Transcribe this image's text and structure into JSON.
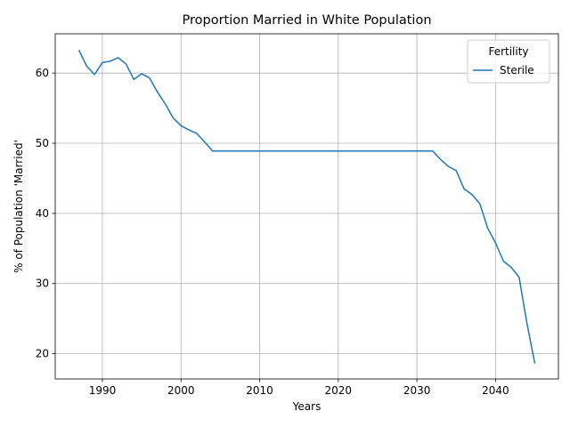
{
  "chart_data": {
    "type": "line",
    "title": "Proportion Married in White Population",
    "xlabel": "Years",
    "ylabel": "% of Population 'Married'",
    "xlim": [
      1984,
      2048
    ],
    "ylim": [
      16.4,
      65.6
    ],
    "xticks": [
      1990,
      2000,
      2010,
      2020,
      2030,
      2040
    ],
    "yticks": [
      20,
      30,
      40,
      50,
      60
    ],
    "grid": true,
    "legend": {
      "title": "Fertility",
      "position": "top-right"
    },
    "colors": {
      "series": "#1f77b4"
    },
    "series": [
      {
        "name": "Sterile",
        "x": [
          1987,
          1988,
          1989,
          1990,
          1991,
          1992,
          1993,
          1994,
          1995,
          1996,
          1997,
          1998,
          1999,
          2000,
          2001,
          2002,
          2003,
          2004,
          2005,
          2010,
          2015,
          2020,
          2025,
          2030,
          2031,
          2032,
          2033,
          2034,
          2035,
          2036,
          2037,
          2038,
          2039,
          2040,
          2041,
          2042,
          2043,
          2044,
          2045
        ],
        "y": [
          63.3,
          61.0,
          59.8,
          61.5,
          61.7,
          62.2,
          61.3,
          59.1,
          59.9,
          59.3,
          57.3,
          55.6,
          53.6,
          52.5,
          51.9,
          51.4,
          50.2,
          48.9,
          48.9,
          48.9,
          48.9,
          48.9,
          48.9,
          48.9,
          48.9,
          48.9,
          47.7,
          46.7,
          46.1,
          43.5,
          42.7,
          41.4,
          37.9,
          35.8,
          33.2,
          32.3,
          30.9,
          24.3,
          18.6
        ]
      }
    ]
  }
}
